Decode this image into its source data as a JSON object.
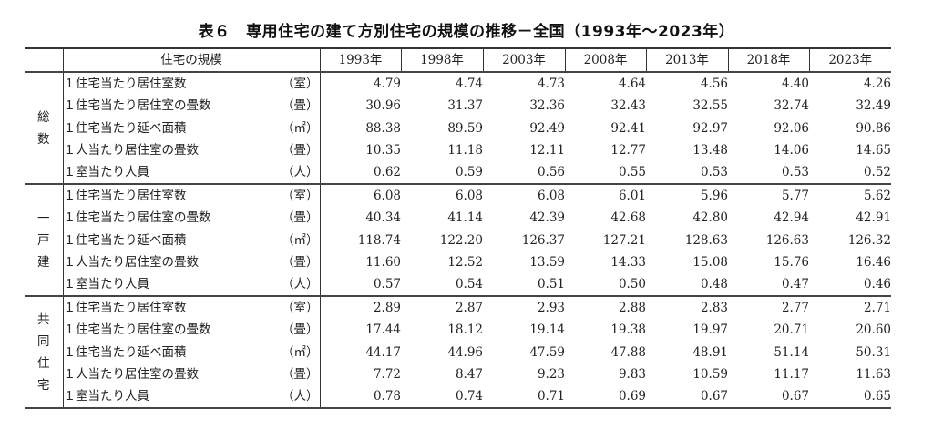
{
  "title": "表６　専用住宅の建て方別住宅の規模の推移－全国（1993年～2023年）",
  "header": {
    "size_label": "住宅の規模",
    "years": [
      "1993年",
      "1998年",
      "2003年",
      "2008年",
      "2013年",
      "2018年",
      "2023年"
    ]
  },
  "groups": [
    {
      "name": [
        "総",
        "数"
      ],
      "rows": [
        {
          "label": "１住宅当たり居住室数",
          "unit": "（室）",
          "values": [
            "4.79",
            "4.74",
            "4.73",
            "4.64",
            "4.56",
            "4.40",
            "4.26"
          ]
        },
        {
          "label": "１住宅当たり居住室の畳数",
          "unit": "（畳）",
          "values": [
            "30.96",
            "31.37",
            "32.36",
            "32.43",
            "32.55",
            "32.74",
            "32.49"
          ]
        },
        {
          "label": "１住宅当たり延べ面積",
          "unit": "（㎡）",
          "values": [
            "88.38",
            "89.59",
            "92.49",
            "92.41",
            "92.97",
            "92.06",
            "90.86"
          ]
        },
        {
          "label": "１人当たり居住室の畳数",
          "unit": "（畳）",
          "values": [
            "10.35",
            "11.18",
            "12.11",
            "12.77",
            "13.48",
            "14.06",
            "14.65"
          ]
        },
        {
          "label": "１室当たり人員",
          "unit": "（人）",
          "values": [
            "0.62",
            "0.59",
            "0.56",
            "0.55",
            "0.53",
            "0.53",
            "0.52"
          ]
        }
      ]
    },
    {
      "name": [
        "一",
        "戸",
        "建"
      ],
      "rows": [
        {
          "label": "１住宅当たり居住室数",
          "unit": "（室）",
          "values": [
            "6.08",
            "6.08",
            "6.08",
            "6.01",
            "5.96",
            "5.77",
            "5.62"
          ]
        },
        {
          "label": "１住宅当たり居住室の畳数",
          "unit": "（畳）",
          "values": [
            "40.34",
            "41.14",
            "42.39",
            "42.68",
            "42.80",
            "42.94",
            "42.91"
          ]
        },
        {
          "label": "１住宅当たり延べ面積",
          "unit": "（㎡）",
          "values": [
            "118.74",
            "122.20",
            "126.37",
            "127.21",
            "128.63",
            "126.63",
            "126.32"
          ]
        },
        {
          "label": "１人当たり居住室の畳数",
          "unit": "（畳）",
          "values": [
            "11.60",
            "12.52",
            "13.59",
            "14.33",
            "15.08",
            "15.76",
            "16.46"
          ]
        },
        {
          "label": "１室当たり人員",
          "unit": "（人）",
          "values": [
            "0.57",
            "0.54",
            "0.51",
            "0.50",
            "0.48",
            "0.47",
            "0.46"
          ]
        }
      ]
    },
    {
      "name": [
        "共",
        "同",
        "住",
        "宅"
      ],
      "rows": [
        {
          "label": "１住宅当たり居住室数",
          "unit": "（室）",
          "values": [
            "2.89",
            "2.87",
            "2.93",
            "2.88",
            "2.83",
            "2.77",
            "2.71"
          ]
        },
        {
          "label": "１住宅当たり居住室の畳数",
          "unit": "（畳）",
          "values": [
            "17.44",
            "18.12",
            "19.14",
            "19.38",
            "19.97",
            "20.71",
            "20.60"
          ]
        },
        {
          "label": "１住宅当たり延べ面積",
          "unit": "（㎡）",
          "values": [
            "44.17",
            "44.96",
            "47.59",
            "47.88",
            "48.91",
            "51.14",
            "50.31"
          ]
        },
        {
          "label": "１人当たり居住室の畳数",
          "unit": "（畳）",
          "values": [
            "7.72",
            "8.47",
            "9.23",
            "9.83",
            "10.59",
            "11.17",
            "11.63"
          ]
        },
        {
          "label": "１室当たり人員",
          "unit": "（人）",
          "values": [
            "0.78",
            "0.74",
            "0.71",
            "0.69",
            "0.67",
            "0.67",
            "0.65"
          ]
        }
      ]
    }
  ]
}
